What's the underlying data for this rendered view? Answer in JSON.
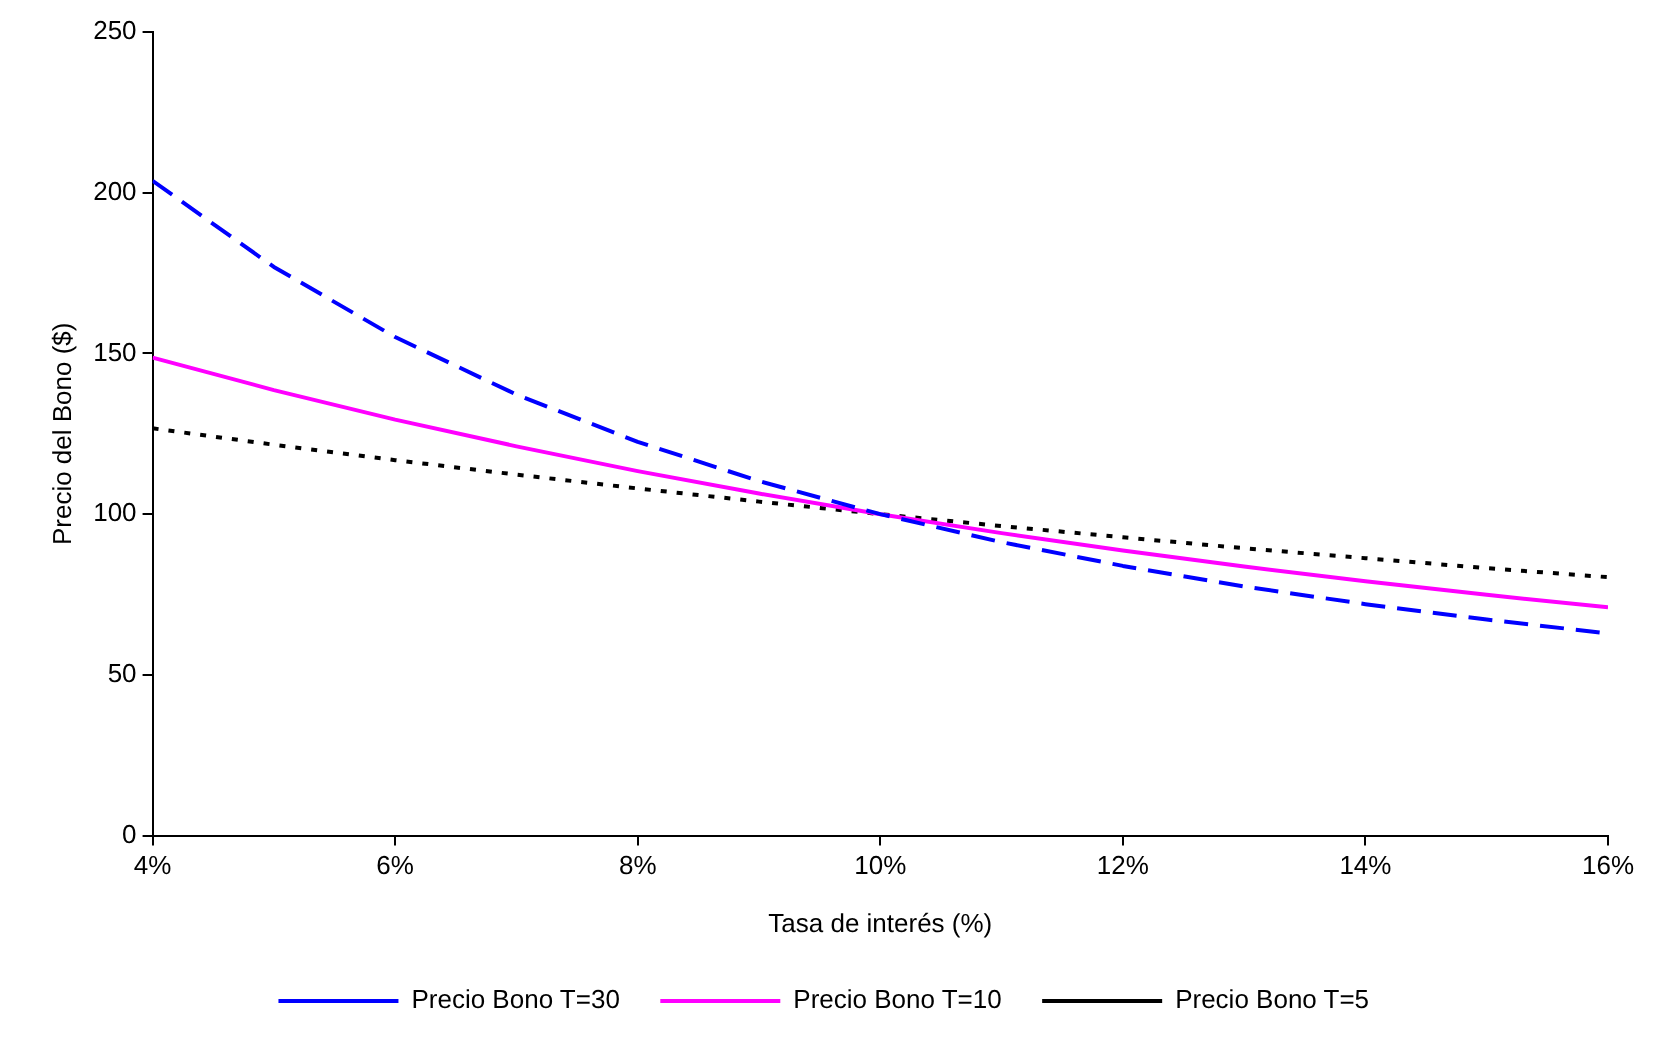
{
  "chart_data": {
    "type": "line",
    "xlabel": "Tasa de interés (%)",
    "ylabel": "Precio del Bono ($)",
    "x": [
      4,
      5,
      6,
      7,
      8,
      9,
      10,
      11,
      12,
      13,
      14,
      15,
      16
    ],
    "series": [
      {
        "name": "Precio Bono T=30",
        "color": "#0000ff",
        "line_style": "dashed",
        "values": [
          203.7,
          176.9,
          155.1,
          137.2,
          122.5,
          110.3,
          100,
          91.3,
          83.9,
          77.5,
          72.0,
          67.2,
          62.9
        ]
      },
      {
        "name": "Precio Bono T=10",
        "color": "#ff00ff",
        "line_style": "solid",
        "values": [
          148.7,
          138.6,
          129.4,
          121.1,
          113.4,
          106.4,
          100,
          94.1,
          88.7,
          83.7,
          79.1,
          74.9,
          71.0
        ]
      },
      {
        "name": "Precio Bono T=5",
        "color": "#000000",
        "line_style": "dotted",
        "values": [
          126.7,
          121.6,
          116.8,
          112.3,
          108.0,
          103.9,
          100,
          96.3,
          92.8,
          89.4,
          86.3,
          83.2,
          80.4
        ]
      }
    ],
    "xlim": [
      4,
      16
    ],
    "xticks": [
      {
        "value": 4,
        "label": "4%"
      },
      {
        "value": 6,
        "label": "6%"
      },
      {
        "value": 8,
        "label": "8%"
      },
      {
        "value": 10,
        "label": "10%"
      },
      {
        "value": 12,
        "label": "12%"
      },
      {
        "value": 14,
        "label": "14%"
      },
      {
        "value": 16,
        "label": "16%"
      }
    ],
    "ylim": [
      0,
      250
    ],
    "yticks": [
      0,
      50,
      100,
      150,
      200,
      250
    ],
    "grid": false,
    "legend": "bottom",
    "marker": "none"
  }
}
